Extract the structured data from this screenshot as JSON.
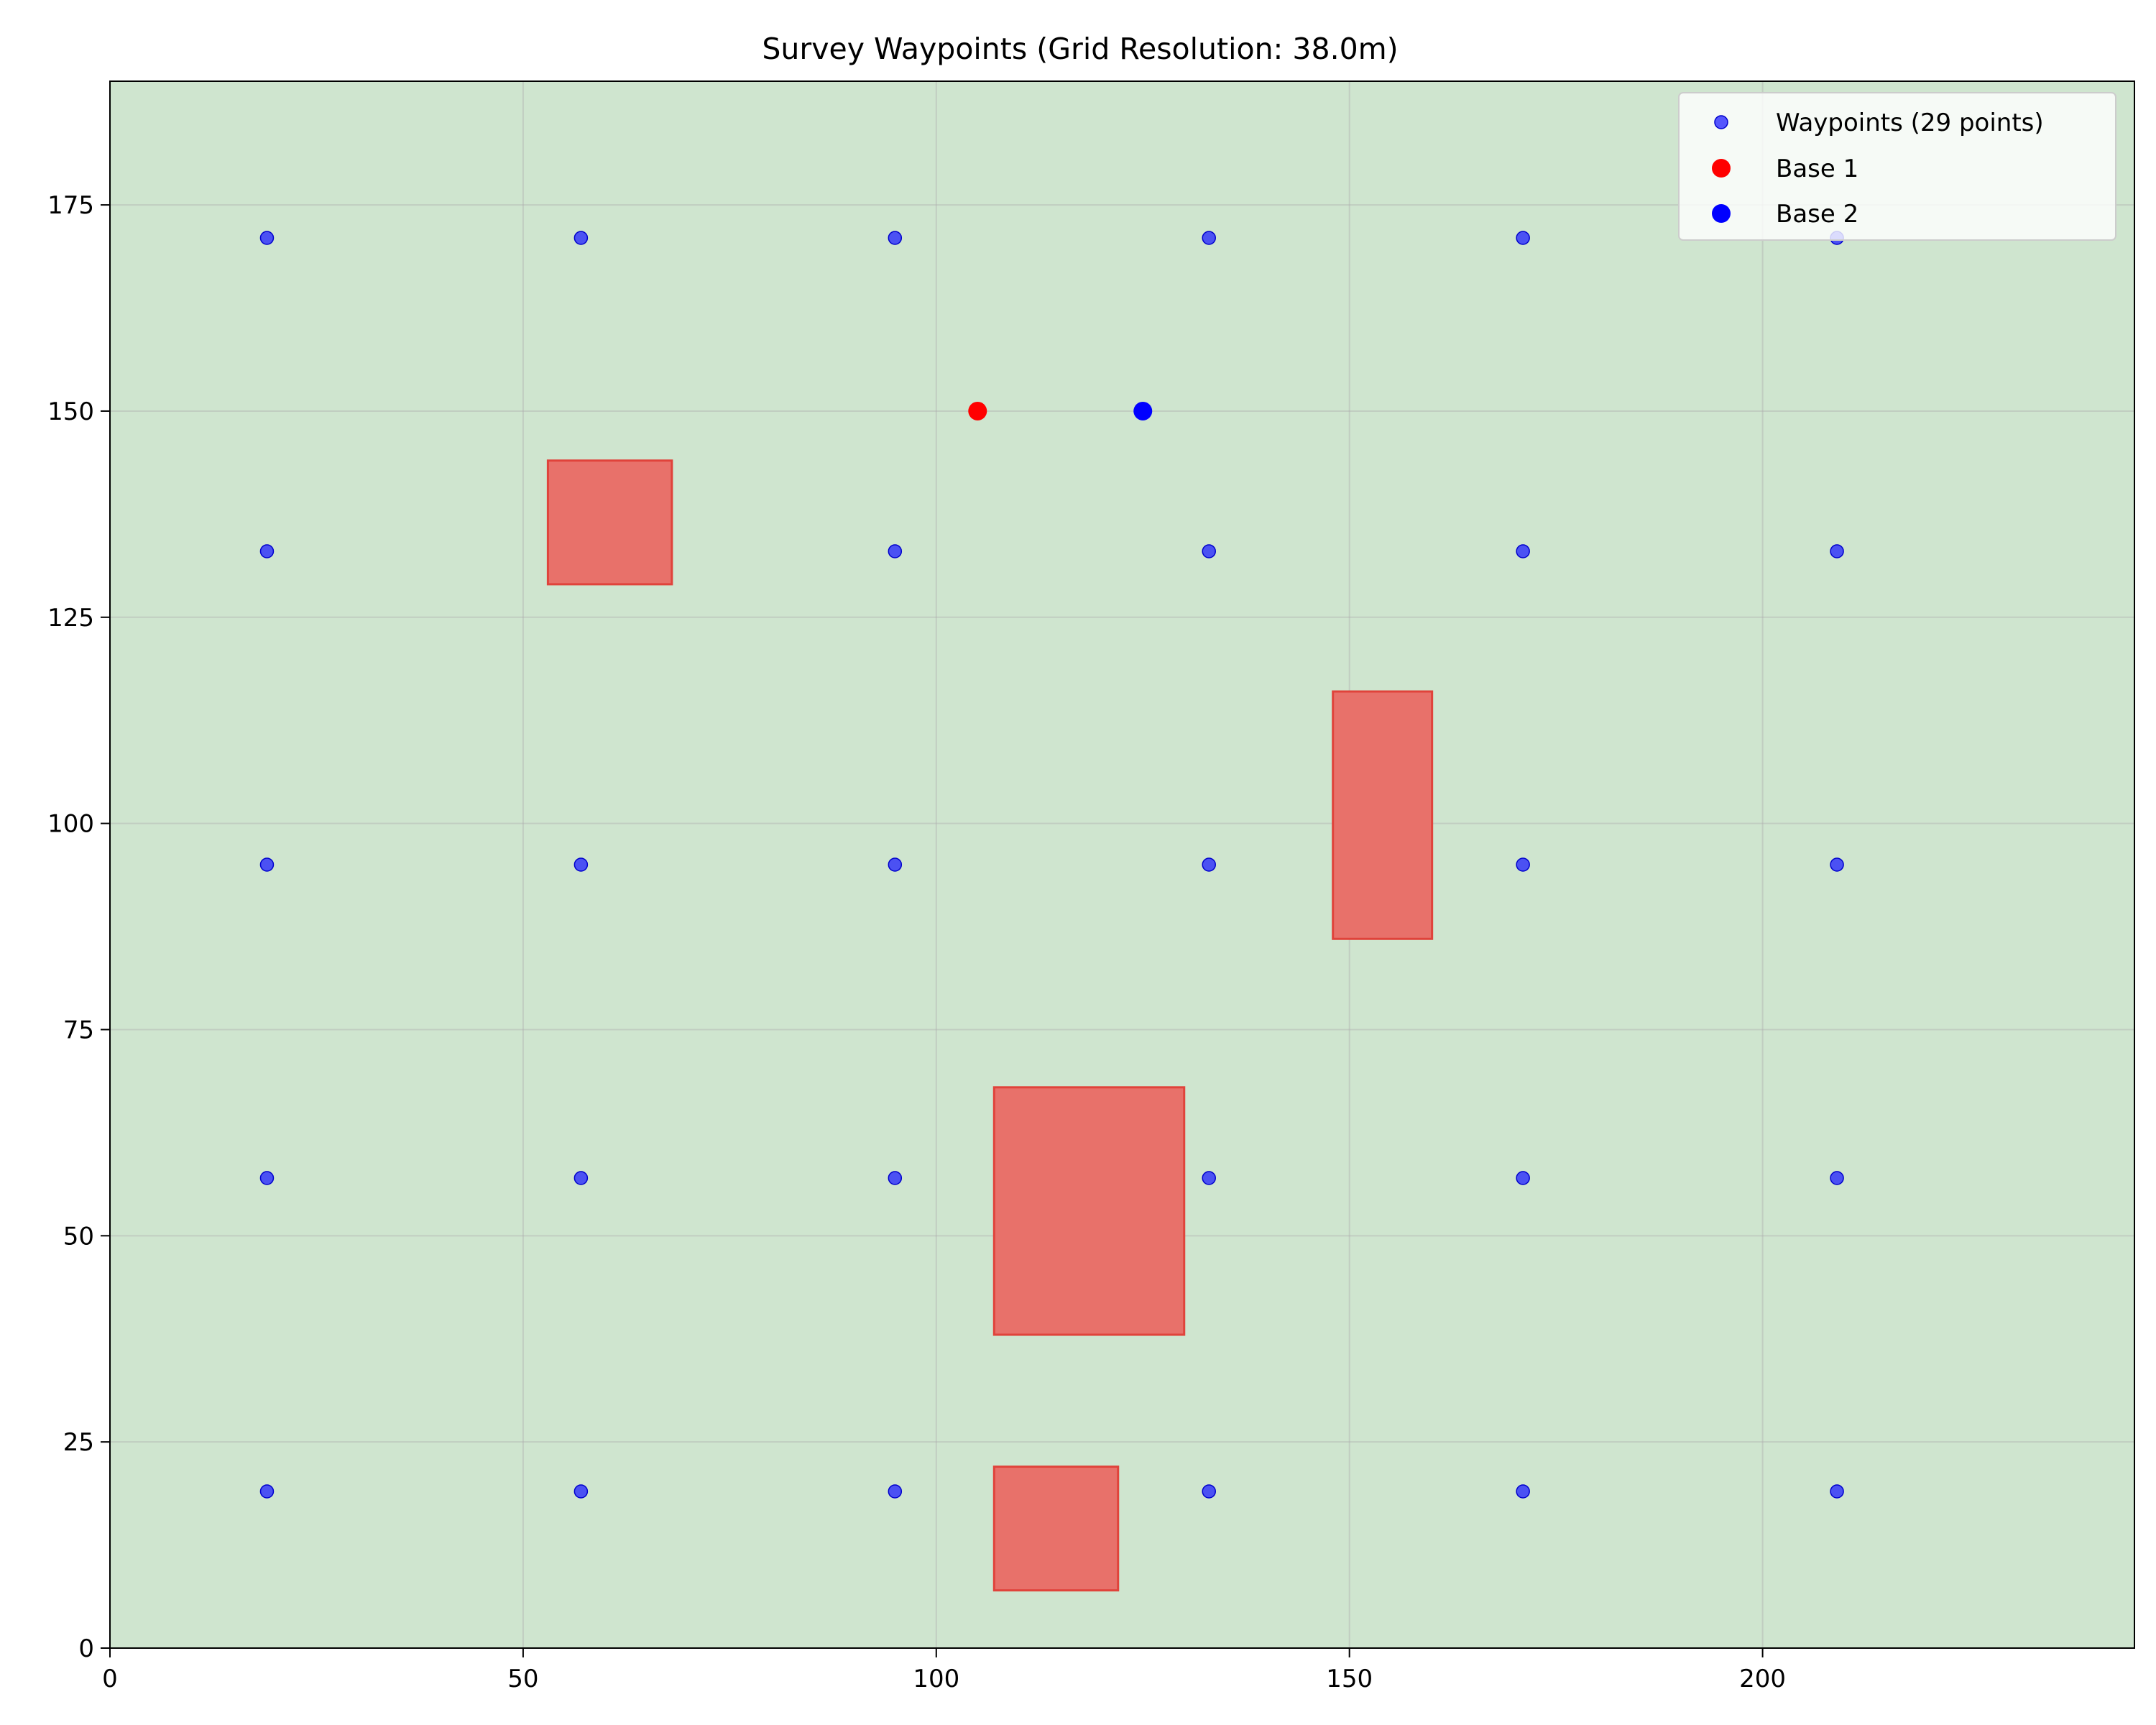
{
  "chart_data": {
    "type": "scatter",
    "title": "Survey Waypoints (Grid Resolution: 38.0m)",
    "xlabel": "",
    "ylabel": "",
    "xlim": [
      0,
      245
    ],
    "ylim": [
      0,
      190
    ],
    "xticks": [
      "0",
      "50",
      "100",
      "150",
      "200"
    ],
    "yticks": [
      "0",
      "25",
      "50",
      "75",
      "100",
      "125",
      "150",
      "175"
    ],
    "grid": true,
    "background_color": "#cfe5cf",
    "legend": {
      "placement": "top-right",
      "entries": [
        "Waypoints (29 points)",
        "Base 1",
        "Base 2"
      ]
    },
    "series": [
      {
        "name": "Waypoints (29 points)",
        "color": "#1f1fff",
        "points": [
          [
            19,
            171
          ],
          [
            57,
            171
          ],
          [
            95,
            171
          ],
          [
            133,
            171
          ],
          [
            171,
            171
          ],
          [
            209,
            171
          ],
          [
            19,
            133
          ],
          [
            95,
            133
          ],
          [
            133,
            133
          ],
          [
            171,
            133
          ],
          [
            209,
            133
          ],
          [
            19,
            95
          ],
          [
            57,
            95
          ],
          [
            95,
            95
          ],
          [
            133,
            95
          ],
          [
            171,
            95
          ],
          [
            209,
            95
          ],
          [
            19,
            57
          ],
          [
            57,
            57
          ],
          [
            95,
            57
          ],
          [
            133,
            57
          ],
          [
            171,
            57
          ],
          [
            209,
            57
          ],
          [
            19,
            19
          ],
          [
            57,
            19
          ],
          [
            95,
            19
          ],
          [
            133,
            19
          ],
          [
            171,
            19
          ],
          [
            209,
            19
          ]
        ]
      },
      {
        "name": "Base 1",
        "color": "#ff0000",
        "points": [
          [
            105,
            150
          ]
        ]
      },
      {
        "name": "Base 2",
        "color": "#0000ff",
        "points": [
          [
            125,
            150
          ]
        ]
      }
    ],
    "obstacles": {
      "color": "#e8716a",
      "rects": [
        {
          "x0": 53,
          "x1": 68,
          "y0": 129,
          "y1": 144
        },
        {
          "x0": 148,
          "x1": 160,
          "y0": 86,
          "y1": 116
        },
        {
          "x0": 107,
          "x1": 130,
          "y0": 38,
          "y1": 68
        },
        {
          "x0": 107,
          "x1": 122,
          "y0": 7,
          "y1": 22
        }
      ]
    }
  }
}
